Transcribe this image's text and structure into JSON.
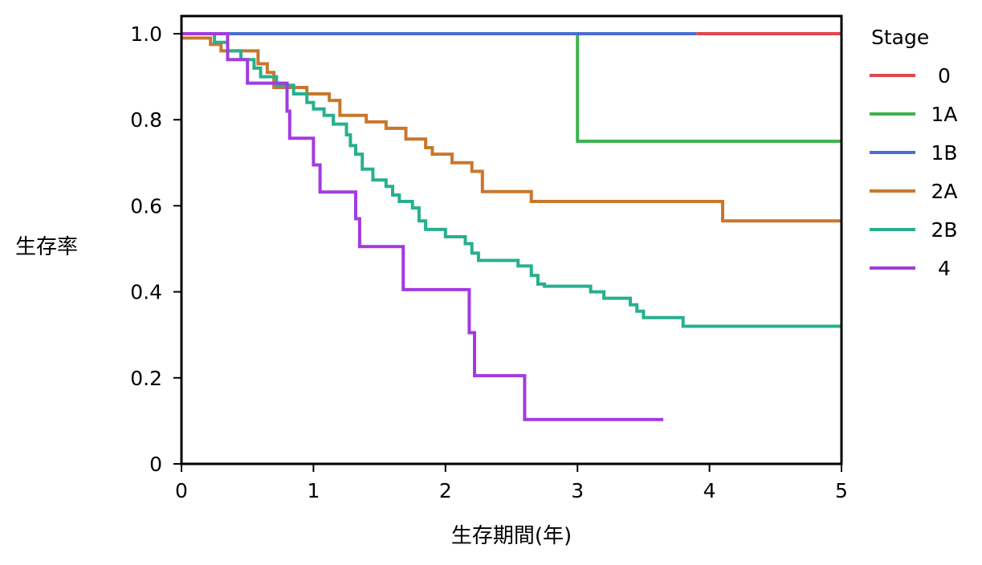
{
  "chart_data": {
    "type": "line",
    "step": true,
    "xlabel": "生存期間(年)",
    "ylabel": "生存率",
    "xlim": [
      0,
      5
    ],
    "ylim": [
      0,
      1.0
    ],
    "x_ticks": [
      0,
      1,
      2,
      3,
      4,
      5
    ],
    "y_ticks": [
      0,
      0.2,
      0.4,
      0.6,
      0.8,
      1.0
    ],
    "x_tick_labels": [
      "0",
      "1",
      "2",
      "3",
      "4",
      "5"
    ],
    "y_tick_labels": [
      "0",
      "0.2",
      "0.4",
      "0.6",
      "0.8",
      "1.0"
    ],
    "grid": false,
    "legend": {
      "title": "Stage",
      "position": "right"
    },
    "series": [
      {
        "name": "0",
        "color": "#e0474c",
        "points": [
          [
            3.9,
            1.0
          ],
          [
            5.0,
            1.0
          ]
        ]
      },
      {
        "name": "1A",
        "color": "#3fb24e",
        "points": [
          [
            0,
            1.0
          ],
          [
            3.0,
            1.0
          ],
          [
            3.0,
            0.75
          ],
          [
            5.0,
            0.75
          ]
        ]
      },
      {
        "name": "1B",
        "color": "#4a6fd1",
        "points": [
          [
            0,
            1.0
          ],
          [
            3.9,
            1.0
          ]
        ]
      },
      {
        "name": "2A",
        "color": "#c8772d",
        "points": [
          [
            0,
            0.99
          ],
          [
            0.22,
            0.99
          ],
          [
            0.22,
            0.975
          ],
          [
            0.3,
            0.975
          ],
          [
            0.3,
            0.96
          ],
          [
            0.58,
            0.96
          ],
          [
            0.58,
            0.93
          ],
          [
            0.65,
            0.93
          ],
          [
            0.65,
            0.91
          ],
          [
            0.7,
            0.91
          ],
          [
            0.7,
            0.875
          ],
          [
            0.95,
            0.875
          ],
          [
            0.95,
            0.86
          ],
          [
            1.12,
            0.86
          ],
          [
            1.12,
            0.845
          ],
          [
            1.2,
            0.845
          ],
          [
            1.2,
            0.83
          ],
          [
            1.2,
            0.81
          ],
          [
            1.4,
            0.81
          ],
          [
            1.4,
            0.795
          ],
          [
            1.55,
            0.795
          ],
          [
            1.55,
            0.78
          ],
          [
            1.7,
            0.78
          ],
          [
            1.7,
            0.755
          ],
          [
            1.85,
            0.755
          ],
          [
            1.85,
            0.735
          ],
          [
            1.9,
            0.735
          ],
          [
            1.9,
            0.72
          ],
          [
            2.05,
            0.72
          ],
          [
            2.05,
            0.7
          ],
          [
            2.2,
            0.7
          ],
          [
            2.2,
            0.68
          ],
          [
            2.28,
            0.68
          ],
          [
            2.28,
            0.633
          ],
          [
            2.65,
            0.633
          ],
          [
            2.65,
            0.61
          ],
          [
            4.1,
            0.61
          ],
          [
            4.1,
            0.565
          ],
          [
            5.0,
            0.565
          ]
        ]
      },
      {
        "name": "2B",
        "color": "#27b08f",
        "points": [
          [
            0,
            1.0
          ],
          [
            0.25,
            1.0
          ],
          [
            0.25,
            0.98
          ],
          [
            0.35,
            0.98
          ],
          [
            0.35,
            0.96
          ],
          [
            0.45,
            0.96
          ],
          [
            0.45,
            0.94
          ],
          [
            0.55,
            0.94
          ],
          [
            0.55,
            0.92
          ],
          [
            0.6,
            0.92
          ],
          [
            0.6,
            0.9
          ],
          [
            0.72,
            0.9
          ],
          [
            0.72,
            0.88
          ],
          [
            0.85,
            0.88
          ],
          [
            0.85,
            0.86
          ],
          [
            0.95,
            0.86
          ],
          [
            0.95,
            0.84
          ],
          [
            1.0,
            0.84
          ],
          [
            1.0,
            0.825
          ],
          [
            1.08,
            0.825
          ],
          [
            1.08,
            0.81
          ],
          [
            1.15,
            0.81
          ],
          [
            1.15,
            0.79
          ],
          [
            1.25,
            0.79
          ],
          [
            1.25,
            0.765
          ],
          [
            1.28,
            0.765
          ],
          [
            1.28,
            0.74
          ],
          [
            1.32,
            0.74
          ],
          [
            1.32,
            0.72
          ],
          [
            1.37,
            0.72
          ],
          [
            1.37,
            0.685
          ],
          [
            1.45,
            0.685
          ],
          [
            1.45,
            0.66
          ],
          [
            1.55,
            0.66
          ],
          [
            1.55,
            0.645
          ],
          [
            1.6,
            0.645
          ],
          [
            1.6,
            0.625
          ],
          [
            1.65,
            0.625
          ],
          [
            1.65,
            0.61
          ],
          [
            1.75,
            0.61
          ],
          [
            1.75,
            0.595
          ],
          [
            1.8,
            0.595
          ],
          [
            1.8,
            0.565
          ],
          [
            1.85,
            0.565
          ],
          [
            1.85,
            0.545
          ],
          [
            2.0,
            0.545
          ],
          [
            2.0,
            0.528
          ],
          [
            2.15,
            0.528
          ],
          [
            2.15,
            0.512
          ],
          [
            2.2,
            0.512
          ],
          [
            2.2,
            0.49
          ],
          [
            2.25,
            0.49
          ],
          [
            2.25,
            0.473
          ],
          [
            2.55,
            0.473
          ],
          [
            2.55,
            0.46
          ],
          [
            2.65,
            0.46
          ],
          [
            2.65,
            0.438
          ],
          [
            2.7,
            0.438
          ],
          [
            2.7,
            0.418
          ],
          [
            2.75,
            0.418
          ],
          [
            2.75,
            0.413
          ],
          [
            3.1,
            0.413
          ],
          [
            3.1,
            0.4
          ],
          [
            3.2,
            0.4
          ],
          [
            3.2,
            0.385
          ],
          [
            3.4,
            0.385
          ],
          [
            3.4,
            0.37
          ],
          [
            3.45,
            0.37
          ],
          [
            3.45,
            0.355
          ],
          [
            3.5,
            0.355
          ],
          [
            3.5,
            0.34
          ],
          [
            3.8,
            0.34
          ],
          [
            3.8,
            0.32
          ],
          [
            5.0,
            0.32
          ]
        ]
      },
      {
        "name": "4",
        "color": "#a13be0",
        "points": [
          [
            0,
            1.0
          ],
          [
            0.35,
            1.0
          ],
          [
            0.35,
            0.94
          ],
          [
            0.5,
            0.94
          ],
          [
            0.5,
            0.885
          ],
          [
            0.8,
            0.885
          ],
          [
            0.8,
            0.82
          ],
          [
            0.82,
            0.82
          ],
          [
            0.82,
            0.757
          ],
          [
            1.0,
            0.757
          ],
          [
            1.0,
            0.695
          ],
          [
            1.05,
            0.695
          ],
          [
            1.05,
            0.632
          ],
          [
            1.32,
            0.632
          ],
          [
            1.32,
            0.57
          ],
          [
            1.35,
            0.57
          ],
          [
            1.35,
            0.505
          ],
          [
            1.68,
            0.505
          ],
          [
            1.68,
            0.405
          ],
          [
            2.18,
            0.405
          ],
          [
            2.18,
            0.305
          ],
          [
            2.22,
            0.305
          ],
          [
            2.22,
            0.205
          ],
          [
            2.6,
            0.205
          ],
          [
            2.6,
            0.103
          ],
          [
            3.65,
            0.103
          ]
        ]
      }
    ]
  }
}
